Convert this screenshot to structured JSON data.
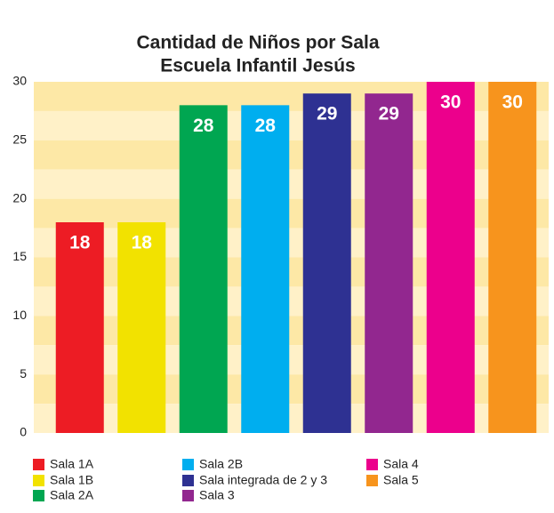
{
  "chart_data": {
    "type": "bar",
    "title": "Cantidad de Niños por Sala",
    "subtitle": "Escuela Infantil Jesús",
    "categories": [
      "Sala 1A",
      "Sala 1B",
      "Sala 2A",
      "Sala 2B",
      "Sala integrada de 2 y 3",
      "Sala 3",
      "Sala 4",
      "Sala 5"
    ],
    "values": [
      18,
      18,
      28,
      28,
      29,
      29,
      30,
      30
    ],
    "colors": [
      "#ed1c24",
      "#f2e200",
      "#00a651",
      "#00aeef",
      "#2e3192",
      "#92278f",
      "#ec008c",
      "#f7941d"
    ],
    "ylim": [
      0,
      30
    ],
    "yticks": [
      0,
      5,
      10,
      15,
      20,
      25,
      30
    ],
    "grid": false
  }
}
